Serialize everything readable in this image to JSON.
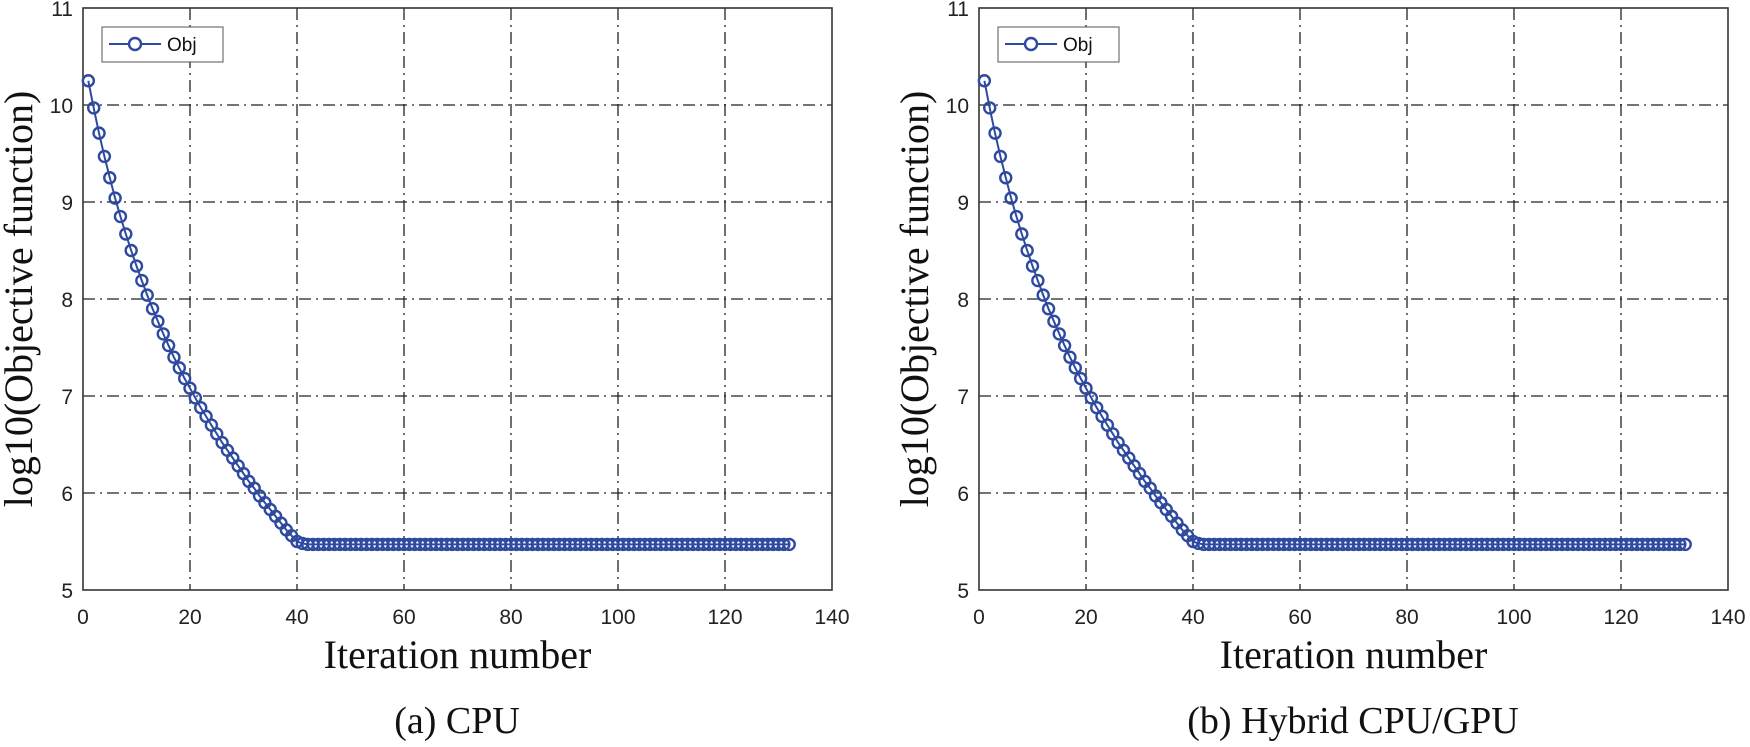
{
  "chart_data": [
    {
      "type": "line",
      "caption": "(a) CPU",
      "xlabel": "Iteration number",
      "ylabel": "log10(Objective function)",
      "xlim": [
        0,
        140
      ],
      "ylim": [
        5,
        11
      ],
      "xticks": [
        "0",
        "20",
        "40",
        "60",
        "80",
        "100",
        "120",
        "140"
      ],
      "yticks": [
        "5",
        "6",
        "7",
        "8",
        "9",
        "10",
        "11"
      ],
      "grid": true,
      "legend_placement": "top-left",
      "marker": "circle",
      "color": "#2e4aa0",
      "series": [
        {
          "name": "Obj",
          "x": [
            1,
            2,
            3,
            4,
            5,
            6,
            7,
            8,
            9,
            10,
            11,
            12,
            13,
            14,
            15,
            16,
            17,
            18,
            19,
            20,
            21,
            22,
            23,
            24,
            25,
            26,
            27,
            28,
            29,
            30,
            31,
            32,
            33,
            34,
            35,
            36,
            37,
            38,
            39,
            40,
            41,
            42,
            43,
            44,
            45,
            46,
            47,
            48,
            49,
            50,
            51,
            52,
            53,
            54,
            55,
            56,
            57,
            58,
            59,
            60,
            61,
            62,
            63,
            64,
            65,
            66,
            67,
            68,
            69,
            70,
            71,
            72,
            73,
            74,
            75,
            76,
            77,
            78,
            79,
            80,
            81,
            82,
            83,
            84,
            85,
            86,
            87,
            88,
            89,
            90,
            91,
            92,
            93,
            94,
            95,
            96,
            97,
            98,
            99,
            100,
            101,
            102,
            103,
            104,
            105,
            106,
            107,
            108,
            109,
            110,
            111,
            112,
            113,
            114,
            115,
            116,
            117,
            118,
            119,
            120,
            121,
            122,
            123,
            124,
            125,
            126,
            127,
            128,
            129,
            130,
            131,
            132
          ],
          "y": [
            10.25,
            9.97,
            9.71,
            9.47,
            9.25,
            9.04,
            8.85,
            8.67,
            8.5,
            8.34,
            8.19,
            8.04,
            7.9,
            7.77,
            7.64,
            7.52,
            7.4,
            7.29,
            7.18,
            7.08,
            6.98,
            6.88,
            6.79,
            6.7,
            6.61,
            6.52,
            6.44,
            6.36,
            6.28,
            6.2,
            6.12,
            6.05,
            5.97,
            5.9,
            5.83,
            5.76,
            5.69,
            5.62,
            5.56,
            5.5,
            5.48,
            5.47,
            5.47,
            5.47,
            5.47,
            5.47,
            5.47,
            5.47,
            5.47,
            5.47,
            5.47,
            5.47,
            5.47,
            5.47,
            5.47,
            5.47,
            5.47,
            5.47,
            5.47,
            5.47,
            5.47,
            5.47,
            5.47,
            5.47,
            5.47,
            5.47,
            5.47,
            5.47,
            5.47,
            5.47,
            5.47,
            5.47,
            5.47,
            5.47,
            5.47,
            5.47,
            5.47,
            5.47,
            5.47,
            5.47,
            5.47,
            5.47,
            5.47,
            5.47,
            5.47,
            5.47,
            5.47,
            5.47,
            5.47,
            5.47,
            5.47,
            5.47,
            5.47,
            5.47,
            5.47,
            5.47,
            5.47,
            5.47,
            5.47,
            5.47,
            5.47,
            5.47,
            5.47,
            5.47,
            5.47,
            5.47,
            5.47,
            5.47,
            5.47,
            5.47,
            5.47,
            5.47,
            5.47,
            5.47,
            5.47,
            5.47,
            5.47,
            5.47,
            5.47,
            5.47,
            5.47,
            5.47,
            5.47,
            5.47,
            5.47,
            5.47,
            5.47,
            5.47,
            5.47,
            5.47,
            5.47,
            5.47
          ]
        }
      ]
    },
    {
      "type": "line",
      "caption": "(b) Hybrid CPU/GPU",
      "xlabel": "Iteration number",
      "ylabel": "log10(Objective function)",
      "xlim": [
        0,
        140
      ],
      "ylim": [
        5,
        11
      ],
      "xticks": [
        "0",
        "20",
        "40",
        "60",
        "80",
        "100",
        "120",
        "140"
      ],
      "yticks": [
        "5",
        "6",
        "7",
        "8",
        "9",
        "10",
        "11"
      ],
      "grid": true,
      "legend_placement": "top-left",
      "marker": "circle",
      "color": "#2e4aa0",
      "series": [
        {
          "name": "Obj",
          "x": [
            1,
            2,
            3,
            4,
            5,
            6,
            7,
            8,
            9,
            10,
            11,
            12,
            13,
            14,
            15,
            16,
            17,
            18,
            19,
            20,
            21,
            22,
            23,
            24,
            25,
            26,
            27,
            28,
            29,
            30,
            31,
            32,
            33,
            34,
            35,
            36,
            37,
            38,
            39,
            40,
            41,
            42,
            43,
            44,
            45,
            46,
            47,
            48,
            49,
            50,
            51,
            52,
            53,
            54,
            55,
            56,
            57,
            58,
            59,
            60,
            61,
            62,
            63,
            64,
            65,
            66,
            67,
            68,
            69,
            70,
            71,
            72,
            73,
            74,
            75,
            76,
            77,
            78,
            79,
            80,
            81,
            82,
            83,
            84,
            85,
            86,
            87,
            88,
            89,
            90,
            91,
            92,
            93,
            94,
            95,
            96,
            97,
            98,
            99,
            100,
            101,
            102,
            103,
            104,
            105,
            106,
            107,
            108,
            109,
            110,
            111,
            112,
            113,
            114,
            115,
            116,
            117,
            118,
            119,
            120,
            121,
            122,
            123,
            124,
            125,
            126,
            127,
            128,
            129,
            130,
            131,
            132
          ],
          "y": [
            10.25,
            9.97,
            9.71,
            9.47,
            9.25,
            9.04,
            8.85,
            8.67,
            8.5,
            8.34,
            8.19,
            8.04,
            7.9,
            7.77,
            7.64,
            7.52,
            7.4,
            7.29,
            7.18,
            7.08,
            6.98,
            6.88,
            6.79,
            6.7,
            6.61,
            6.52,
            6.44,
            6.36,
            6.28,
            6.2,
            6.12,
            6.05,
            5.97,
            5.9,
            5.83,
            5.76,
            5.69,
            5.62,
            5.56,
            5.5,
            5.48,
            5.47,
            5.47,
            5.47,
            5.47,
            5.47,
            5.47,
            5.47,
            5.47,
            5.47,
            5.47,
            5.47,
            5.47,
            5.47,
            5.47,
            5.47,
            5.47,
            5.47,
            5.47,
            5.47,
            5.47,
            5.47,
            5.47,
            5.47,
            5.47,
            5.47,
            5.47,
            5.47,
            5.47,
            5.47,
            5.47,
            5.47,
            5.47,
            5.47,
            5.47,
            5.47,
            5.47,
            5.47,
            5.47,
            5.47,
            5.47,
            5.47,
            5.47,
            5.47,
            5.47,
            5.47,
            5.47,
            5.47,
            5.47,
            5.47,
            5.47,
            5.47,
            5.47,
            5.47,
            5.47,
            5.47,
            5.47,
            5.47,
            5.47,
            5.47,
            5.47,
            5.47,
            5.47,
            5.47,
            5.47,
            5.47,
            5.47,
            5.47,
            5.47,
            5.47,
            5.47,
            5.47,
            5.47,
            5.47,
            5.47,
            5.47,
            5.47,
            5.47,
            5.47,
            5.47,
            5.47,
            5.47,
            5.47,
            5.47,
            5.47,
            5.47,
            5.47,
            5.47,
            5.47,
            5.47,
            5.47,
            5.47
          ]
        }
      ]
    }
  ]
}
